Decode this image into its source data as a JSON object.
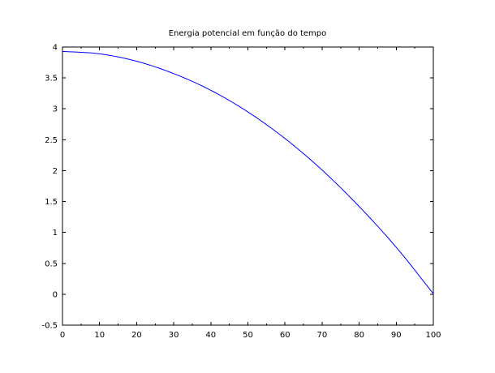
{
  "chart_data": {
    "type": "line",
    "title": "Energia potencial em função do tempo",
    "xlabel": "",
    "ylabel": "",
    "xlim": [
      0,
      100
    ],
    "ylim": [
      -0.5,
      4
    ],
    "xticks": [
      {
        "value": 0,
        "label": "0"
      },
      {
        "value": 10,
        "label": "10"
      },
      {
        "value": 20,
        "label": "20"
      },
      {
        "value": 30,
        "label": "30"
      },
      {
        "value": 40,
        "label": "40"
      },
      {
        "value": 50,
        "label": "50"
      },
      {
        "value": 60,
        "label": "60"
      },
      {
        "value": 70,
        "label": "70"
      },
      {
        "value": 80,
        "label": "80"
      },
      {
        "value": 90,
        "label": "90"
      },
      {
        "value": 100,
        "label": "100"
      }
    ],
    "yticks": [
      {
        "value": -0.5,
        "label": "-0.5"
      },
      {
        "value": 0,
        "label": "0"
      },
      {
        "value": 0.5,
        "label": "0.5"
      },
      {
        "value": 1,
        "label": "1"
      },
      {
        "value": 1.5,
        "label": "1.5"
      },
      {
        "value": 2,
        "label": "2"
      },
      {
        "value": 2.5,
        "label": "2.5"
      },
      {
        "value": 3,
        "label": "3"
      },
      {
        "value": 3.5,
        "label": "3.5"
      },
      {
        "value": 4,
        "label": "4"
      }
    ],
    "grid": false,
    "series": [
      {
        "color": "#0000ff",
        "x": [
          0,
          10,
          20,
          30,
          40,
          50,
          60,
          70,
          80,
          90,
          100
        ],
        "y": [
          3.93,
          3.89,
          3.77,
          3.57,
          3.3,
          2.95,
          2.52,
          2.01,
          1.42,
          0.76,
          0.01
        ]
      }
    ]
  }
}
